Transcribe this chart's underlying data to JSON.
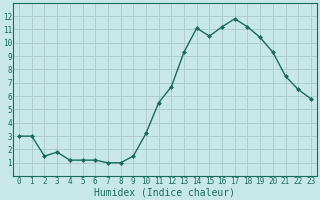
{
  "x": [
    0,
    1,
    2,
    3,
    4,
    5,
    6,
    7,
    8,
    9,
    10,
    11,
    12,
    13,
    14,
    15,
    16,
    17,
    18,
    19,
    20,
    21,
    22,
    23
  ],
  "y": [
    3.0,
    3.0,
    1.5,
    1.8,
    1.2,
    1.2,
    1.2,
    1.0,
    1.0,
    1.5,
    3.2,
    5.5,
    6.7,
    9.3,
    11.1,
    10.5,
    11.2,
    11.8,
    11.2,
    10.4,
    9.3,
    7.5,
    6.5,
    5.8
  ],
  "line_color": "#1a6b5a",
  "marker": "D",
  "marker_size": 2.0,
  "bg_color": "#c8e8e8",
  "grid_color": "#b0cccc",
  "xlabel": "Humidex (Indice chaleur)",
  "ylim": [
    0,
    13
  ],
  "xlim": [
    -0.5,
    23.5
  ],
  "yticks": [
    1,
    2,
    3,
    4,
    5,
    6,
    7,
    8,
    9,
    10,
    11,
    12
  ],
  "xticks": [
    0,
    1,
    2,
    3,
    4,
    5,
    6,
    7,
    8,
    9,
    10,
    11,
    12,
    13,
    14,
    15,
    16,
    17,
    18,
    19,
    20,
    21,
    22,
    23
  ],
  "tick_fontsize": 5.5,
  "xlabel_fontsize": 7.0,
  "axis_color": "#1a6b5a",
  "spine_color": "#1a6b5a",
  "linewidth": 1.0
}
